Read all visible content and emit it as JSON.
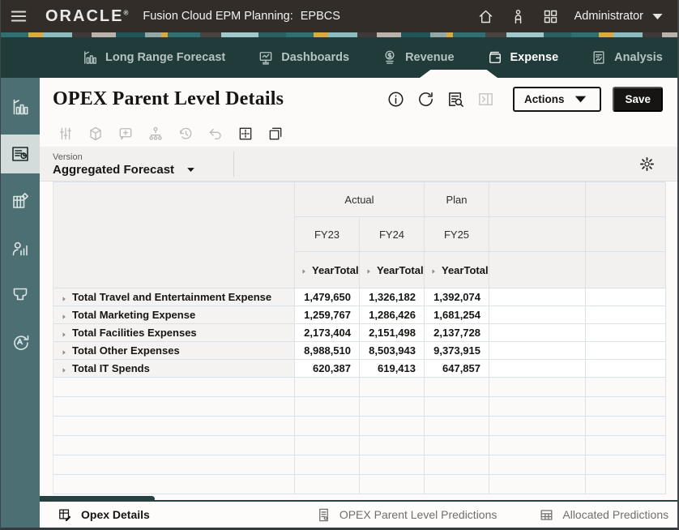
{
  "topbar": {
    "brand": "ORACLE",
    "product": "Fusion Cloud EPM Planning:",
    "env": "EPBCS",
    "user": "Administrator"
  },
  "nav": {
    "tabs": [
      {
        "id": "long-range-forecast",
        "label": "Long Range Forecast",
        "icon": "nav-chart",
        "active": false
      },
      {
        "id": "dashboards",
        "label": "Dashboards",
        "icon": "nav-dashboard",
        "active": false
      },
      {
        "id": "revenue",
        "label": "Revenue",
        "icon": "nav-revenue",
        "active": false
      },
      {
        "id": "expense",
        "label": "Expense",
        "icon": "nav-expense",
        "active": true
      },
      {
        "id": "analysis",
        "label": "Analysis",
        "icon": "nav-analysis",
        "active": false
      }
    ]
  },
  "sidebar": {
    "items": [
      {
        "id": "dashboards",
        "icon": "sb-chart",
        "active": false
      },
      {
        "id": "data-forms",
        "icon": "sb-form",
        "active": true
      },
      {
        "id": "cubes",
        "icon": "sb-cube",
        "active": false
      },
      {
        "id": "workforce",
        "icon": "sb-person",
        "active": false
      },
      {
        "id": "filters",
        "icon": "sb-funnel",
        "active": false
      },
      {
        "id": "approvals",
        "icon": "sb-sync",
        "active": false
      }
    ]
  },
  "page": {
    "title": "OPEX Parent Level Details",
    "actions_label": "Actions",
    "save_label": "Save"
  },
  "toolbar_icons": [
    {
      "name": "adjust",
      "enabled": false
    },
    {
      "name": "cube",
      "enabled": false
    },
    {
      "name": "comment-add",
      "enabled": false
    },
    {
      "name": "hierarchy",
      "enabled": false
    },
    {
      "name": "history",
      "enabled": false
    },
    {
      "name": "undo",
      "enabled": false
    },
    {
      "name": "freeze-pane",
      "enabled": true
    },
    {
      "name": "detach",
      "enabled": true
    }
  ],
  "pov": {
    "dimension": "Version",
    "member": "Aggregated Forecast"
  },
  "grid": {
    "scenario_row": [
      {
        "label": "Actual",
        "span": 2
      },
      {
        "label": "Plan",
        "span": 1
      },
      {
        "label": "",
        "span": 1
      },
      {
        "label": "",
        "span": 1
      }
    ],
    "year_row": [
      "FY23",
      "FY24",
      "FY25",
      "",
      ""
    ],
    "period_row": [
      "YearTotal",
      "YearTotal",
      "YearTotal",
      "",
      ""
    ],
    "rows": [
      {
        "label": "Total Travel and Entertainment Expense",
        "values": [
          "1,479,650",
          "1,326,182",
          "1,392,074",
          "",
          ""
        ]
      },
      {
        "label": "Total Marketing Expense",
        "values": [
          "1,259,767",
          "1,286,426",
          "1,681,254",
          "",
          ""
        ]
      },
      {
        "label": "Total Facilities Expenses",
        "values": [
          "2,173,404",
          "2,151,498",
          "2,137,728",
          "",
          ""
        ]
      },
      {
        "label": "Total Other Expenses",
        "values": [
          "8,988,510",
          "8,503,943",
          "9,373,915",
          "",
          ""
        ]
      },
      {
        "label": "Total IT Spends",
        "values": [
          "620,387",
          "619,413",
          "647,857",
          "",
          ""
        ]
      }
    ],
    "empty_row_count": 6
  },
  "bottom_tabs": [
    {
      "id": "opex-details",
      "label": "Opex Details",
      "icon": "tab-form-edit",
      "active": true
    },
    {
      "id": "opex-parent-level-predictions",
      "label": "OPEX Parent Level Predictions",
      "icon": "tab-doc",
      "active": false
    },
    {
      "id": "allocated-predictions",
      "label": "Allocated Predictions",
      "icon": "tab-table",
      "active": false
    }
  ],
  "colors": {
    "topbar_bg": "#322d29",
    "navbar_bg": "#203b3a",
    "sidebar_bg": "#4b6f72",
    "accent_teal": "#26413f",
    "save_button_bg": "#161513",
    "grid_line": "#dbe1e8",
    "header_cell_bg": "#f3f1ef"
  }
}
